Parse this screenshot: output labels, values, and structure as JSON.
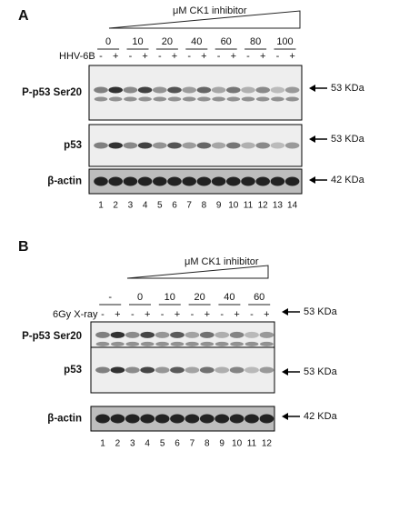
{
  "panels": [
    {
      "label": "A",
      "treatment_title": "μM CK1 inhibitor",
      "doses": [
        "0",
        "10",
        "20",
        "40",
        "60",
        "80",
        "100"
      ],
      "condition_label": "HHV-6B",
      "signs": [
        "-",
        "+",
        "-",
        "+",
        "-",
        "+",
        "-",
        "+",
        "-",
        "+",
        "-",
        "+",
        "-",
        "+"
      ],
      "blots": [
        {
          "label": "P-p53 Ser20",
          "marker": "53 KDa"
        },
        {
          "label": "p53",
          "marker": "53 KDa"
        },
        {
          "label": "β-actin",
          "marker": "42 KDa"
        }
      ],
      "lanes": [
        "1",
        "2",
        "3",
        "4",
        "5",
        "6",
        "7",
        "8",
        "9",
        "10",
        "11",
        "12",
        "13",
        "14"
      ]
    },
    {
      "label": "B",
      "treatment_title": "μM CK1 inhibitor",
      "doses": [
        "-",
        "0",
        "10",
        "20",
        "40",
        "60"
      ],
      "condition_label": "6Gy X-ray",
      "signs": [
        "-",
        "+",
        "-",
        "+",
        "-",
        "+",
        "-",
        "+",
        "-",
        "+",
        "-",
        "+"
      ],
      "blots": [
        {
          "label": "P-p53 Ser20",
          "marker": "53 KDa"
        },
        {
          "label": "p53",
          "marker": "53 KDa"
        },
        {
          "label": "β-actin",
          "marker": "42 KDa"
        }
      ],
      "lanes": [
        "1",
        "2",
        "3",
        "4",
        "5",
        "6",
        "7",
        "8",
        "9",
        "10",
        "11",
        "12"
      ]
    }
  ]
}
